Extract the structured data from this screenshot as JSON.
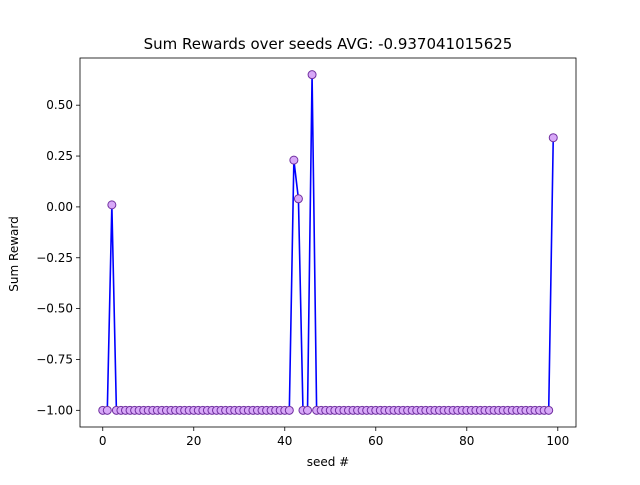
{
  "chart_data": {
    "type": "line",
    "title": "Sum Rewards over seeds AVG:  -0.937041015625",
    "xlabel": "seed #",
    "ylabel": "Sum Reward",
    "xlim": [
      -5,
      104
    ],
    "ylim": [
      -1.082,
      0.732
    ],
    "xticks": [
      0,
      20,
      40,
      60,
      80,
      100
    ],
    "xtick_labels": [
      "0",
      "20",
      "40",
      "60",
      "80",
      "100"
    ],
    "yticks": [
      -1.0,
      -0.75,
      -0.5,
      -0.25,
      0.0,
      0.25,
      0.5
    ],
    "ytick_labels": [
      "−1.00",
      "−0.75",
      "−0.50",
      "−0.25",
      "0.00",
      "0.25",
      "0.50"
    ],
    "grid": false,
    "line_color": "#0000ff",
    "marker_face_color": "#d8a8f8",
    "marker_edge_color": "#7030a0",
    "series": [
      {
        "x": [
          0,
          1,
          2,
          3,
          4,
          5,
          6,
          7,
          8,
          9,
          10,
          11,
          12,
          13,
          14,
          15,
          16,
          17,
          18,
          19,
          20,
          21,
          22,
          23,
          24,
          25,
          26,
          27,
          28,
          29,
          30,
          31,
          32,
          33,
          34,
          35,
          36,
          37,
          38,
          39,
          40,
          41,
          42,
          43,
          44,
          45,
          46,
          47,
          48,
          49,
          50,
          51,
          52,
          53,
          54,
          55,
          56,
          57,
          58,
          59,
          60,
          61,
          62,
          63,
          64,
          65,
          66,
          67,
          68,
          69,
          70,
          71,
          72,
          73,
          74,
          75,
          76,
          77,
          78,
          79,
          80,
          81,
          82,
          83,
          84,
          85,
          86,
          87,
          88,
          89,
          90,
          91,
          92,
          93,
          94,
          95,
          96,
          97,
          98,
          99
        ],
        "y": [
          -1.0,
          -1.0,
          0.01,
          -1.0,
          -1.0,
          -1.0,
          -1.0,
          -1.0,
          -1.0,
          -1.0,
          -1.0,
          -1.0,
          -1.0,
          -1.0,
          -1.0,
          -1.0,
          -1.0,
          -1.0,
          -1.0,
          -1.0,
          -1.0,
          -1.0,
          -1.0,
          -1.0,
          -1.0,
          -1.0,
          -1.0,
          -1.0,
          -1.0,
          -1.0,
          -1.0,
          -1.0,
          -1.0,
          -1.0,
          -1.0,
          -1.0,
          -1.0,
          -1.0,
          -1.0,
          -1.0,
          -1.0,
          -1.0,
          0.23,
          0.04,
          -1.0,
          -1.0,
          0.65,
          -1.0,
          -1.0,
          -1.0,
          -1.0,
          -1.0,
          -1.0,
          -1.0,
          -1.0,
          -1.0,
          -1.0,
          -1.0,
          -1.0,
          -1.0,
          -1.0,
          -1.0,
          -1.0,
          -1.0,
          -1.0,
          -1.0,
          -1.0,
          -1.0,
          -1.0,
          -1.0,
          -1.0,
          -1.0,
          -1.0,
          -1.0,
          -1.0,
          -1.0,
          -1.0,
          -1.0,
          -1.0,
          -1.0,
          -1.0,
          -1.0,
          -1.0,
          -1.0,
          -1.0,
          -1.0,
          -1.0,
          -1.0,
          -1.0,
          -1.0,
          -1.0,
          -1.0,
          -1.0,
          -1.0,
          -1.0,
          -1.0,
          -1.0,
          -1.0,
          -1.0,
          0.34
        ]
      }
    ]
  }
}
